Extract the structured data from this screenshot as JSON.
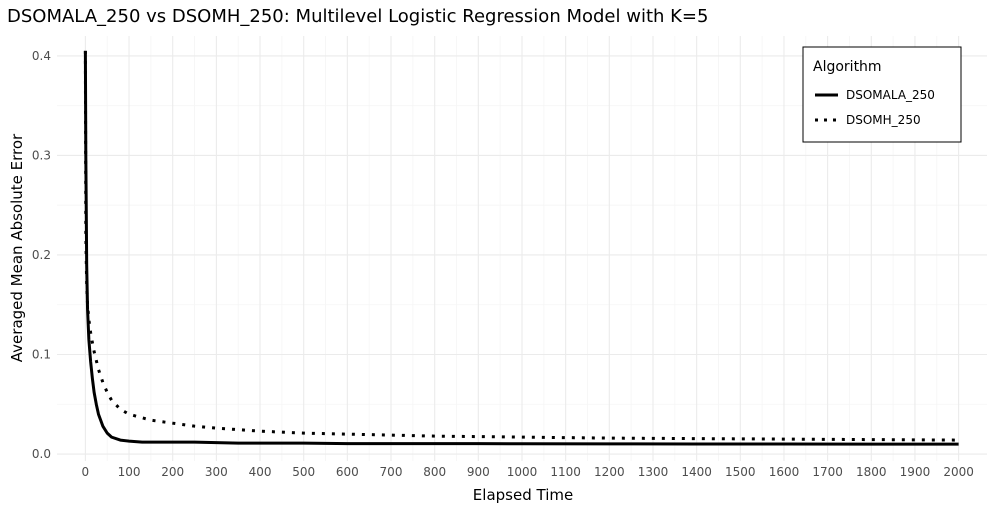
{
  "chart_data": {
    "type": "line",
    "title": "DSOMALA_250 vs DSOMH_250: Multilevel Logistic Regression Model with K=5",
    "xlabel": "Elapsed Time",
    "ylabel": "Averaged Mean Absolute Error",
    "xlim": [
      -65,
      2065
    ],
    "ylim": [
      -0.007,
      0.42
    ],
    "xticks": [
      0,
      100,
      200,
      300,
      400,
      500,
      600,
      700,
      800,
      900,
      1000,
      1100,
      1200,
      1300,
      1400,
      1500,
      1600,
      1700,
      1800,
      1900,
      2000
    ],
    "xtick_labels": [
      "0",
      "100",
      "200",
      "300",
      "400",
      "500",
      "600",
      "700",
      "800",
      "900",
      "1000",
      "1100",
      "1200",
      "1300",
      "1400",
      "1500",
      "1600",
      "1700",
      "1800",
      "1900",
      "2000"
    ],
    "yticks": [
      0,
      0.1,
      0.2,
      0.3,
      0.4
    ],
    "ytick_labels": [
      "0.0",
      "0.1",
      "0.2",
      "0.3",
      "0.4"
    ],
    "grid": true,
    "legend": {
      "title": "Algorithm",
      "position": "top-right",
      "entries": [
        "DSOMALA_250",
        "DSOMH_250"
      ]
    },
    "series": [
      {
        "name": "DSOMALA_250",
        "style": "solid",
        "x": [
          0,
          1,
          3,
          5,
          8,
          12,
          16,
          20,
          25,
          30,
          40,
          50,
          60,
          80,
          100,
          130,
          160,
          200,
          250,
          300,
          350,
          400,
          500,
          600,
          700,
          800,
          900,
          1000,
          1200,
          1400,
          1600,
          1800,
          2000
        ],
        "y": [
          0.405,
          0.3,
          0.19,
          0.145,
          0.115,
          0.093,
          0.076,
          0.062,
          0.05,
          0.04,
          0.028,
          0.021,
          0.017,
          0.014,
          0.013,
          0.012,
          0.012,
          0.012,
          0.012,
          0.0115,
          0.011,
          0.011,
          0.011,
          0.0105,
          0.0105,
          0.0105,
          0.0105,
          0.0103,
          0.0102,
          0.0101,
          0.0101,
          0.01,
          0.01
        ]
      },
      {
        "name": "DSOMH_250",
        "style": "dotted",
        "x": [
          0,
          1,
          3,
          5,
          8,
          12,
          16,
          20,
          25,
          30,
          40,
          50,
          60,
          80,
          100,
          150,
          200,
          250,
          300,
          400,
          500,
          600,
          700,
          800,
          900,
          1000,
          1200,
          1400,
          1600,
          1800,
          2000
        ],
        "y": [
          0.405,
          0.22,
          0.17,
          0.15,
          0.135,
          0.122,
          0.112,
          0.103,
          0.094,
          0.085,
          0.072,
          0.062,
          0.054,
          0.045,
          0.04,
          0.034,
          0.031,
          0.028,
          0.026,
          0.023,
          0.021,
          0.02,
          0.019,
          0.018,
          0.0175,
          0.017,
          0.016,
          0.0155,
          0.015,
          0.0145,
          0.014
        ]
      }
    ]
  }
}
